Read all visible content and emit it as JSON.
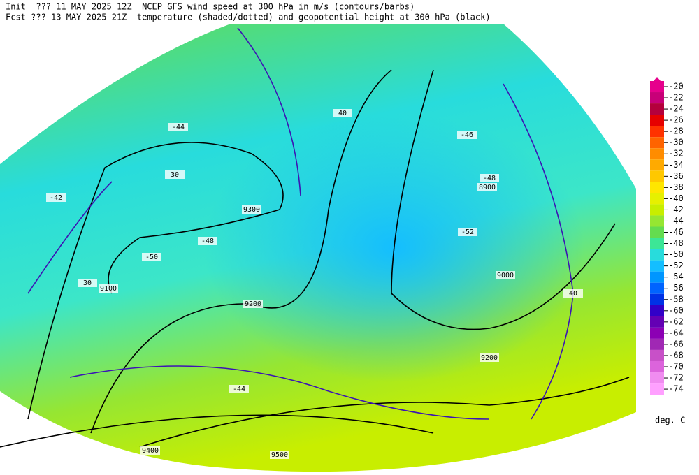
{
  "header": {
    "line1": "Init  ??? 11 MAY 2025 12Z  NCEP GFS wind speed at 300 hPa in m/s (contours/barbs)",
    "line2": "Fcst ??? 13 MAY 2025 21Z  temperature (shaded/dotted) and geopotential height at 300 hPa (black)"
  },
  "colorbar": {
    "unit": "deg. C",
    "levels": [
      {
        "value": -20,
        "color": "#e6008c"
      },
      {
        "value": -22,
        "color": "#c80078"
      },
      {
        "value": -24,
        "color": "#b4003c"
      },
      {
        "value": -26,
        "color": "#e60000"
      },
      {
        "value": -28,
        "color": "#ff3200"
      },
      {
        "value": -30,
        "color": "#ff6400"
      },
      {
        "value": -32,
        "color": "#ff8c00"
      },
      {
        "value": -34,
        "color": "#ffaa00"
      },
      {
        "value": -36,
        "color": "#ffc800"
      },
      {
        "value": -38,
        "color": "#ffe600"
      },
      {
        "value": -40,
        "color": "#e6f000"
      },
      {
        "value": -42,
        "color": "#c8ee00"
      },
      {
        "value": -44,
        "color": "#96e632"
      },
      {
        "value": -46,
        "color": "#64dc50"
      },
      {
        "value": -48,
        "color": "#3ce696"
      },
      {
        "value": -50,
        "color": "#28dcdc"
      },
      {
        "value": -52,
        "color": "#14beff"
      },
      {
        "value": -54,
        "color": "#0096ff"
      },
      {
        "value": -56,
        "color": "#0064ff"
      },
      {
        "value": -58,
        "color": "#0032e6"
      },
      {
        "value": -60,
        "color": "#3200c8"
      },
      {
        "value": -62,
        "color": "#6400b4"
      },
      {
        "value": -64,
        "color": "#8c00b4"
      },
      {
        "value": -66,
        "color": "#a028b4"
      },
      {
        "value": -68,
        "color": "#c850c8"
      },
      {
        "value": -70,
        "color": "#dc64dc"
      },
      {
        "value": -72,
        "color": "#f08cf0"
      },
      {
        "value": -74,
        "color": "#ffa0ff"
      }
    ]
  },
  "map": {
    "labels": [
      "9300",
      "9200",
      "9100",
      "8900",
      "9000",
      "9400",
      "9500",
      "9200",
      "30",
      "40",
      "30",
      "40",
      "-44",
      "-48",
      "-50",
      "-52",
      "-46",
      "-42",
      "-48",
      "-44"
    ]
  }
}
